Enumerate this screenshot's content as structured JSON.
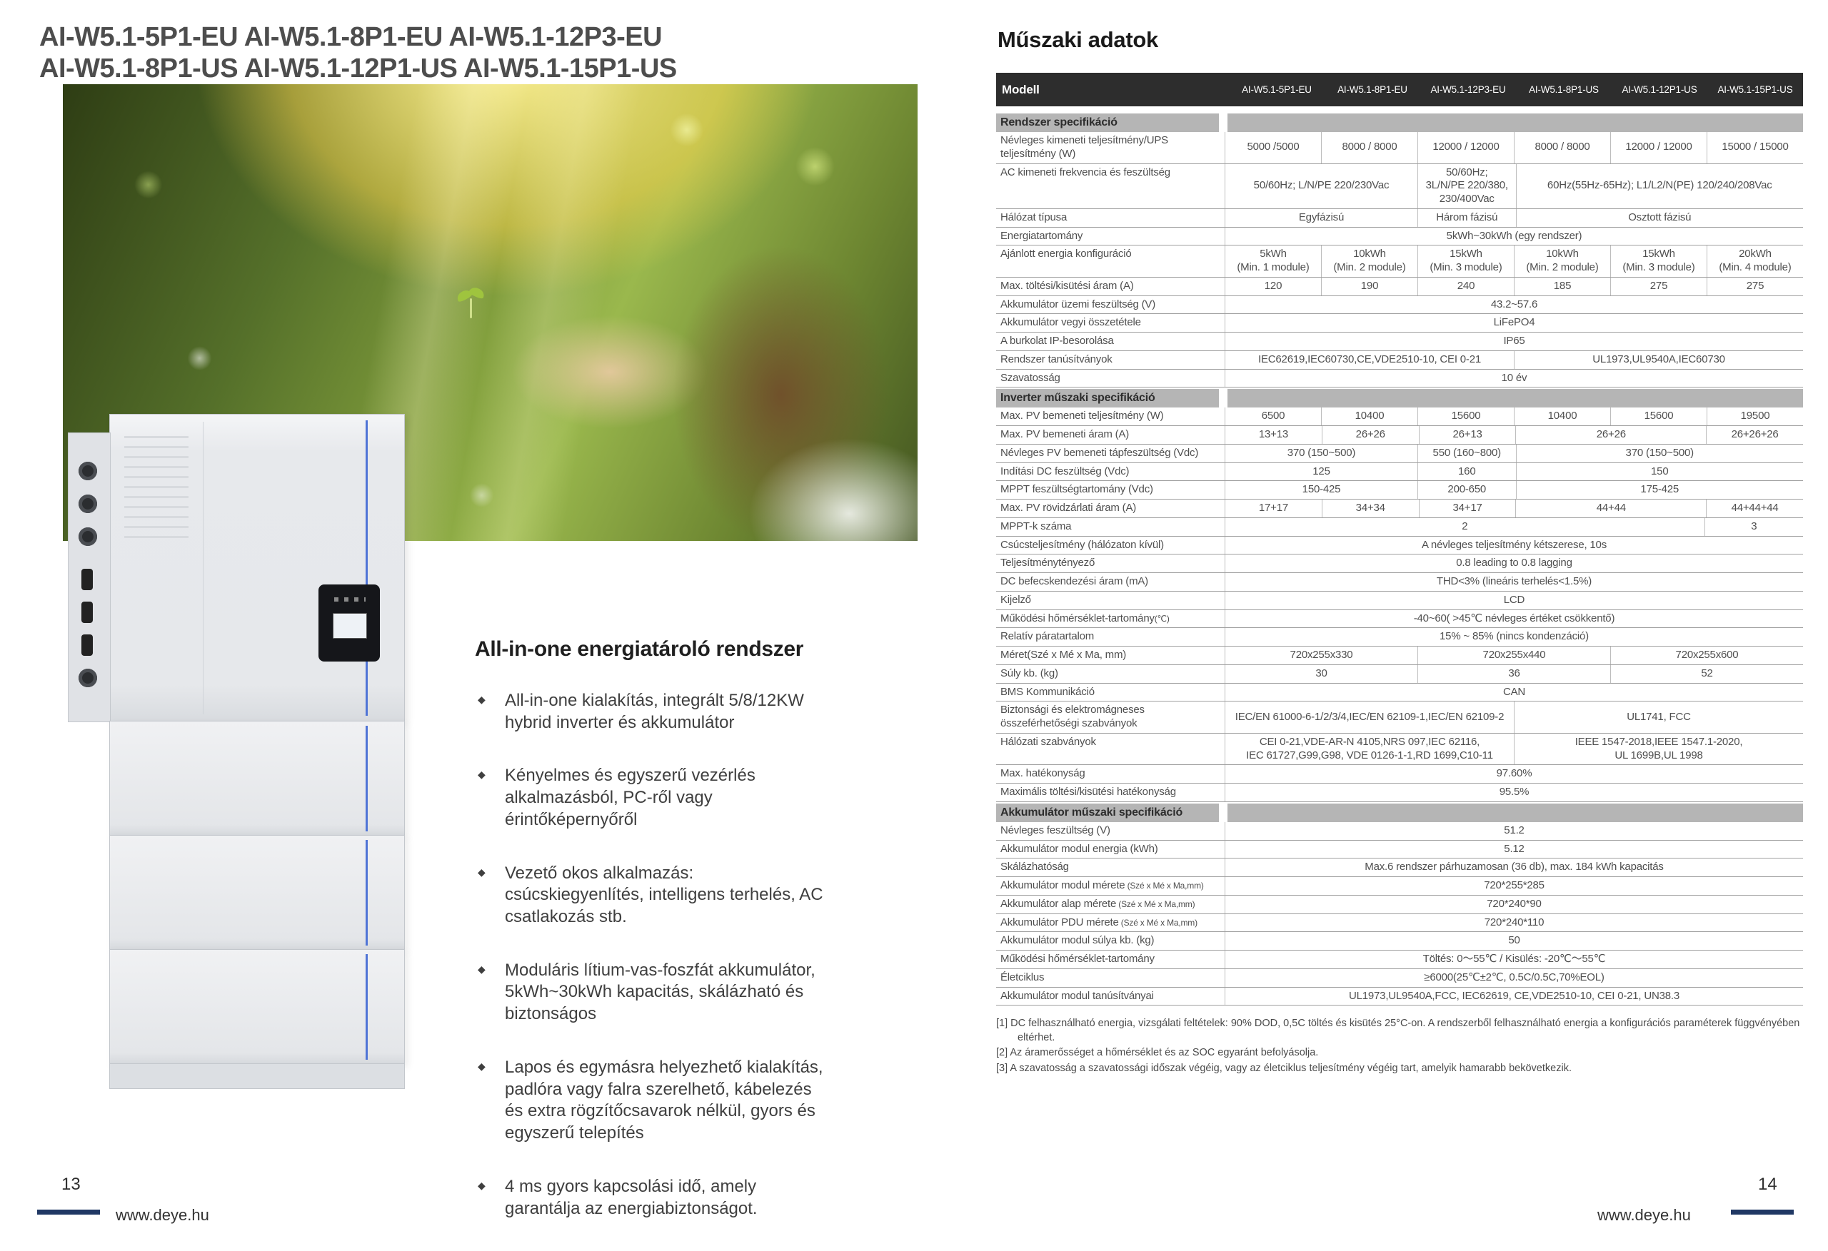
{
  "colors": {
    "header_bar": "#2d2d2d",
    "section_bar": "#b5b5b5",
    "footer_line_navy": "#203864",
    "product_accent_blue": "#4f74d6"
  },
  "left": {
    "title1": "AI-W5.1-5P1-EU AI-W5.1-8P1-EU AI-W5.1-12P3-EU",
    "title2": "AI-W5.1-8P1-US AI-W5.1-12P1-US AI-W5.1-15P1-US",
    "feature_heading": "All-in-one energiatároló rendszer",
    "bullets": [
      "All-in-one kialakítás, integrált 5/8/12KW hybrid inverter és akkumulátor",
      "Kényelmes és egyszerű vezérlés alkalmazásból, PC-ről vagy érintőképernyőről",
      "Vezető okos alkalmazás: csúcskiegyenlítés, intelligens terhelés, AC csatlakozás stb.",
      "Moduláris lítium-vas-foszfát akkumulátor, 5kWh~30kWh kapacitás, skálázható és biztonságos",
      "Lapos és egymásra helyezhető kialakítás, padlóra vagy falra szerelhető, kábelezés és extra rögzítőcsavarok nélkül, gyors és egyszerű telepítés",
      "4 ms gyors kapcsolási idő, amely garantálja az energiabiztonságot."
    ],
    "page_number": "13",
    "site": "www.deye.hu"
  },
  "right": {
    "section_title": "Műszaki adatok",
    "page_number": "14",
    "site": "www.deye.hu",
    "footnotes": [
      "[1] DC felhasználható energia, vizsgálati feltételek: 90% DOD, 0,5C töltés és kisütés 25°C-on. A rendszerből felhasználható energia a konfigurációs paraméterek függvényében eltérhet.",
      "[2] Az áramerősséget a hőmérséklet és az SOC egyaránt befolyásolja.",
      "[3] A szavatosság a szavatossági időszak végéig, vagy az életciklus teljesítmény végéig tart, amelyik hamarabb bekövetkezik."
    ]
  },
  "table": {
    "model_header_label": "Modell",
    "models": [
      "AI-W5.1-5P1-EU",
      "AI-W5.1-8P1-EU",
      "AI-W5.1-12P3-EU",
      "AI-W5.1-8P1-US",
      "AI-W5.1-12P1-US",
      "AI-W5.1-15P1-US"
    ],
    "rows": [
      {
        "section": "Rendszer specifikáció"
      },
      {
        "label": "Névleges kimeneti teljesítmény/UPS teljesítmény (W)",
        "cells": [
          [
            "5000 /5000",
            1
          ],
          [
            "8000 / 8000",
            1
          ],
          [
            "12000 / 12000",
            1
          ],
          [
            "8000 / 8000",
            1
          ],
          [
            "12000 / 12000",
            1
          ],
          [
            "15000 / 15000",
            1
          ]
        ]
      },
      {
        "label": "AC kimeneti frekvencia és feszültség",
        "cells": [
          [
            "50/60Hz; L/N/PE 220/230Vac",
            2
          ],
          [
            "50/60Hz;\n3L/N/PE 220/380,\n230/400Vac",
            1
          ],
          [
            "60Hz(55Hz-65Hz); L1/L2/N(PE) 120/240/208Vac",
            3
          ]
        ]
      },
      {
        "label": "Hálózat típusa",
        "cells": [
          [
            "Egyfázisú",
            2
          ],
          [
            "Három fázisú",
            1
          ],
          [
            "Osztott fázisú",
            3
          ]
        ]
      },
      {
        "label": "Energiatartomány",
        "cells": [
          [
            "5kWh~30kWh (egy rendszer)",
            6
          ]
        ]
      },
      {
        "label": "Ajánlott energia konfiguráció",
        "cells": [
          [
            "5kWh\n(Min. 1 module)",
            1
          ],
          [
            "10kWh\n(Min. 2 module)",
            1
          ],
          [
            "15kWh\n(Min. 3 module)",
            1
          ],
          [
            "10kWh\n(Min. 2 module)",
            1
          ],
          [
            "15kWh\n(Min. 3 module)",
            1
          ],
          [
            "20kWh\n(Min. 4 module)",
            1
          ]
        ]
      },
      {
        "label": "Max. töltési/kisütési áram (A)",
        "cells": [
          [
            "120",
            1
          ],
          [
            "190",
            1
          ],
          [
            "240",
            1
          ],
          [
            "185",
            1
          ],
          [
            "275",
            1
          ],
          [
            "275",
            1
          ]
        ]
      },
      {
        "label": "Akkumulátor üzemi feszültség (V)",
        "cells": [
          [
            "43.2~57.6",
            6
          ]
        ]
      },
      {
        "label": "Akkumulátor vegyi összetétele",
        "cells": [
          [
            "LiFePO4",
            6
          ]
        ]
      },
      {
        "label": "A burkolat IP-besorolása",
        "cells": [
          [
            "IP65",
            6
          ]
        ]
      },
      {
        "label": "Rendszer tanúsítványok",
        "cells": [
          [
            "IEC62619,IEC60730,CE,VDE2510-10, CEI 0-21",
            3
          ],
          [
            "UL1973,UL9540A,IEC60730",
            3
          ]
        ]
      },
      {
        "label": "Szavatosság",
        "cells": [
          [
            "10 év",
            6
          ]
        ]
      },
      {
        "section": "Inverter műszaki specifikáció"
      },
      {
        "label": "Max. PV bemeneti teljesítmény (W)",
        "cells": [
          [
            "6500",
            1
          ],
          [
            "10400",
            1
          ],
          [
            "15600",
            1
          ],
          [
            "10400",
            1
          ],
          [
            "15600",
            1
          ],
          [
            "19500",
            1
          ]
        ]
      },
      {
        "label": "Max. PV bemeneti áram (A)",
        "cells": [
          [
            "13+13",
            1
          ],
          [
            "26+26",
            1
          ],
          [
            "26+13",
            1
          ],
          [
            "26+26",
            2
          ],
          [
            "26+26+26",
            1
          ]
        ]
      },
      {
        "label": "Névleges PV bemeneti tápfeszültség (Vdc)",
        "cells": [
          [
            "370 (150~500)",
            2
          ],
          [
            "550 (160~800)",
            1
          ],
          [
            "370 (150~500)",
            3
          ]
        ]
      },
      {
        "label": "Indítási DC feszültség (Vdc)",
        "cells": [
          [
            "125",
            2
          ],
          [
            "160",
            1
          ],
          [
            "150",
            3
          ]
        ]
      },
      {
        "label": "MPPT feszültségtartomány (Vdc)",
        "cells": [
          [
            "150-425",
            2
          ],
          [
            "200-650",
            1
          ],
          [
            "175-425",
            3
          ]
        ]
      },
      {
        "label": "Max. PV rövidzárlati áram (A)",
        "cells": [
          [
            "17+17",
            1
          ],
          [
            "34+34",
            1
          ],
          [
            "34+17",
            1
          ],
          [
            "44+44",
            2
          ],
          [
            "44+44+44",
            1
          ]
        ]
      },
      {
        "label": "MPPT-k száma",
        "cells": [
          [
            "2",
            5
          ],
          [
            "3",
            1
          ]
        ]
      },
      {
        "label": "Csúcsteljesítmény (hálózaton kívül)",
        "cells": [
          [
            "A névleges teljesítmény kétszerese, 10s",
            6
          ]
        ]
      },
      {
        "label": "Teljesítménytényező",
        "cells": [
          [
            "0.8 leading to 0.8 lagging",
            6
          ]
        ]
      },
      {
        "label": "DC befecskendezési áram (mA)",
        "cells": [
          [
            "THD<3% (lineáris terhelés<1.5%)",
            6
          ]
        ]
      },
      {
        "label": "Kijelző",
        "cells": [
          [
            "LCD",
            6
          ]
        ]
      },
      {
        "label": "Működési hőmérséklet-tartomány",
        "sub": "(℃)",
        "cells": [
          [
            "-40~60( >45℃ névleges értéket csökkentő)",
            6
          ]
        ]
      },
      {
        "label": "Relatív páratartalom",
        "cells": [
          [
            "15% ~ 85% (nincs kondenzáció)",
            6
          ]
        ]
      },
      {
        "label": "Méret(Szé x Mé x Ma, mm)",
        "cells": [
          [
            "720x255x330",
            2
          ],
          [
            "720x255x440",
            2
          ],
          [
            "720x255x600",
            2
          ]
        ]
      },
      {
        "label": "Súly kb. (kg)",
        "cells": [
          [
            "30",
            2
          ],
          [
            "36",
            2
          ],
          [
            "52",
            2
          ]
        ]
      },
      {
        "label": "BMS Kommunikáció",
        "cells": [
          [
            "CAN",
            6
          ]
        ]
      },
      {
        "label": "Biztonsági és elektromágneses összeférhetőségi szabványok",
        "cells": [
          [
            "IEC/EN 61000-6-1/2/3/4,IEC/EN 62109-1,IEC/EN 62109-2",
            3
          ],
          [
            "UL1741, FCC",
            3
          ]
        ]
      },
      {
        "label": "Hálózati szabványok",
        "cells": [
          [
            "CEI 0-21,VDE-AR-N 4105,NRS 097,IEC 62116,\nIEC 61727,G99,G98, VDE 0126-1-1,RD 1699,C10-11",
            3
          ],
          [
            "IEEE 1547-2018,IEEE 1547.1-2020,\nUL 1699B,UL 1998",
            3
          ]
        ]
      },
      {
        "label": "Max. hatékonyság",
        "cells": [
          [
            "97.60%",
            6
          ]
        ]
      },
      {
        "label": "Maximális töltési/kisütési hatékonyság",
        "cells": [
          [
            "95.5%",
            6
          ]
        ]
      },
      {
        "section": "Akkumulátor műszaki specifikáció"
      },
      {
        "label": "Névleges feszültség (V)",
        "cells": [
          [
            "51.2",
            6
          ]
        ]
      },
      {
        "label": "Akkumulátor modul energia (kWh)",
        "cells": [
          [
            "5.12",
            6
          ]
        ]
      },
      {
        "label": "Skálázhatóság",
        "cells": [
          [
            "Max.6 rendszer párhuzamosan (36 db), max. 184 kWh kapacitás",
            6
          ]
        ]
      },
      {
        "label": "Akkumulátor modul mérete",
        "sub": " (Szé x Mé x Ma,mm)",
        "cells": [
          [
            "720*255*285",
            6
          ]
        ]
      },
      {
        "label": "Akkumulátor alap mérete",
        "sub": " (Szé x Mé x Ma,mm)",
        "cells": [
          [
            "720*240*90",
            6
          ]
        ]
      },
      {
        "label": "Akkumulátor PDU mérete",
        "sub": " (Szé x Mé x Ma,mm)",
        "cells": [
          [
            "720*240*110",
            6
          ]
        ]
      },
      {
        "label": "Akkumulátor modul súlya kb. (kg)",
        "cells": [
          [
            "50",
            6
          ]
        ]
      },
      {
        "label": "Működési hőmérséklet-tartomány",
        "cells": [
          [
            "Töltés: 0～55℃ / Kisülés: -20℃～55℃",
            6
          ]
        ]
      },
      {
        "label": "Életciklus",
        "cells": [
          [
            "≥6000(25℃±2℃, 0.5C/0.5C,70%EOL)",
            6
          ]
        ]
      },
      {
        "label": "Akkumulátor modul tanúsítványai",
        "cells": [
          [
            "UL1973,UL9540A,FCC, IEC62619, CE,VDE2510-10, CEI 0-21, UN38.3",
            6
          ]
        ]
      }
    ]
  }
}
